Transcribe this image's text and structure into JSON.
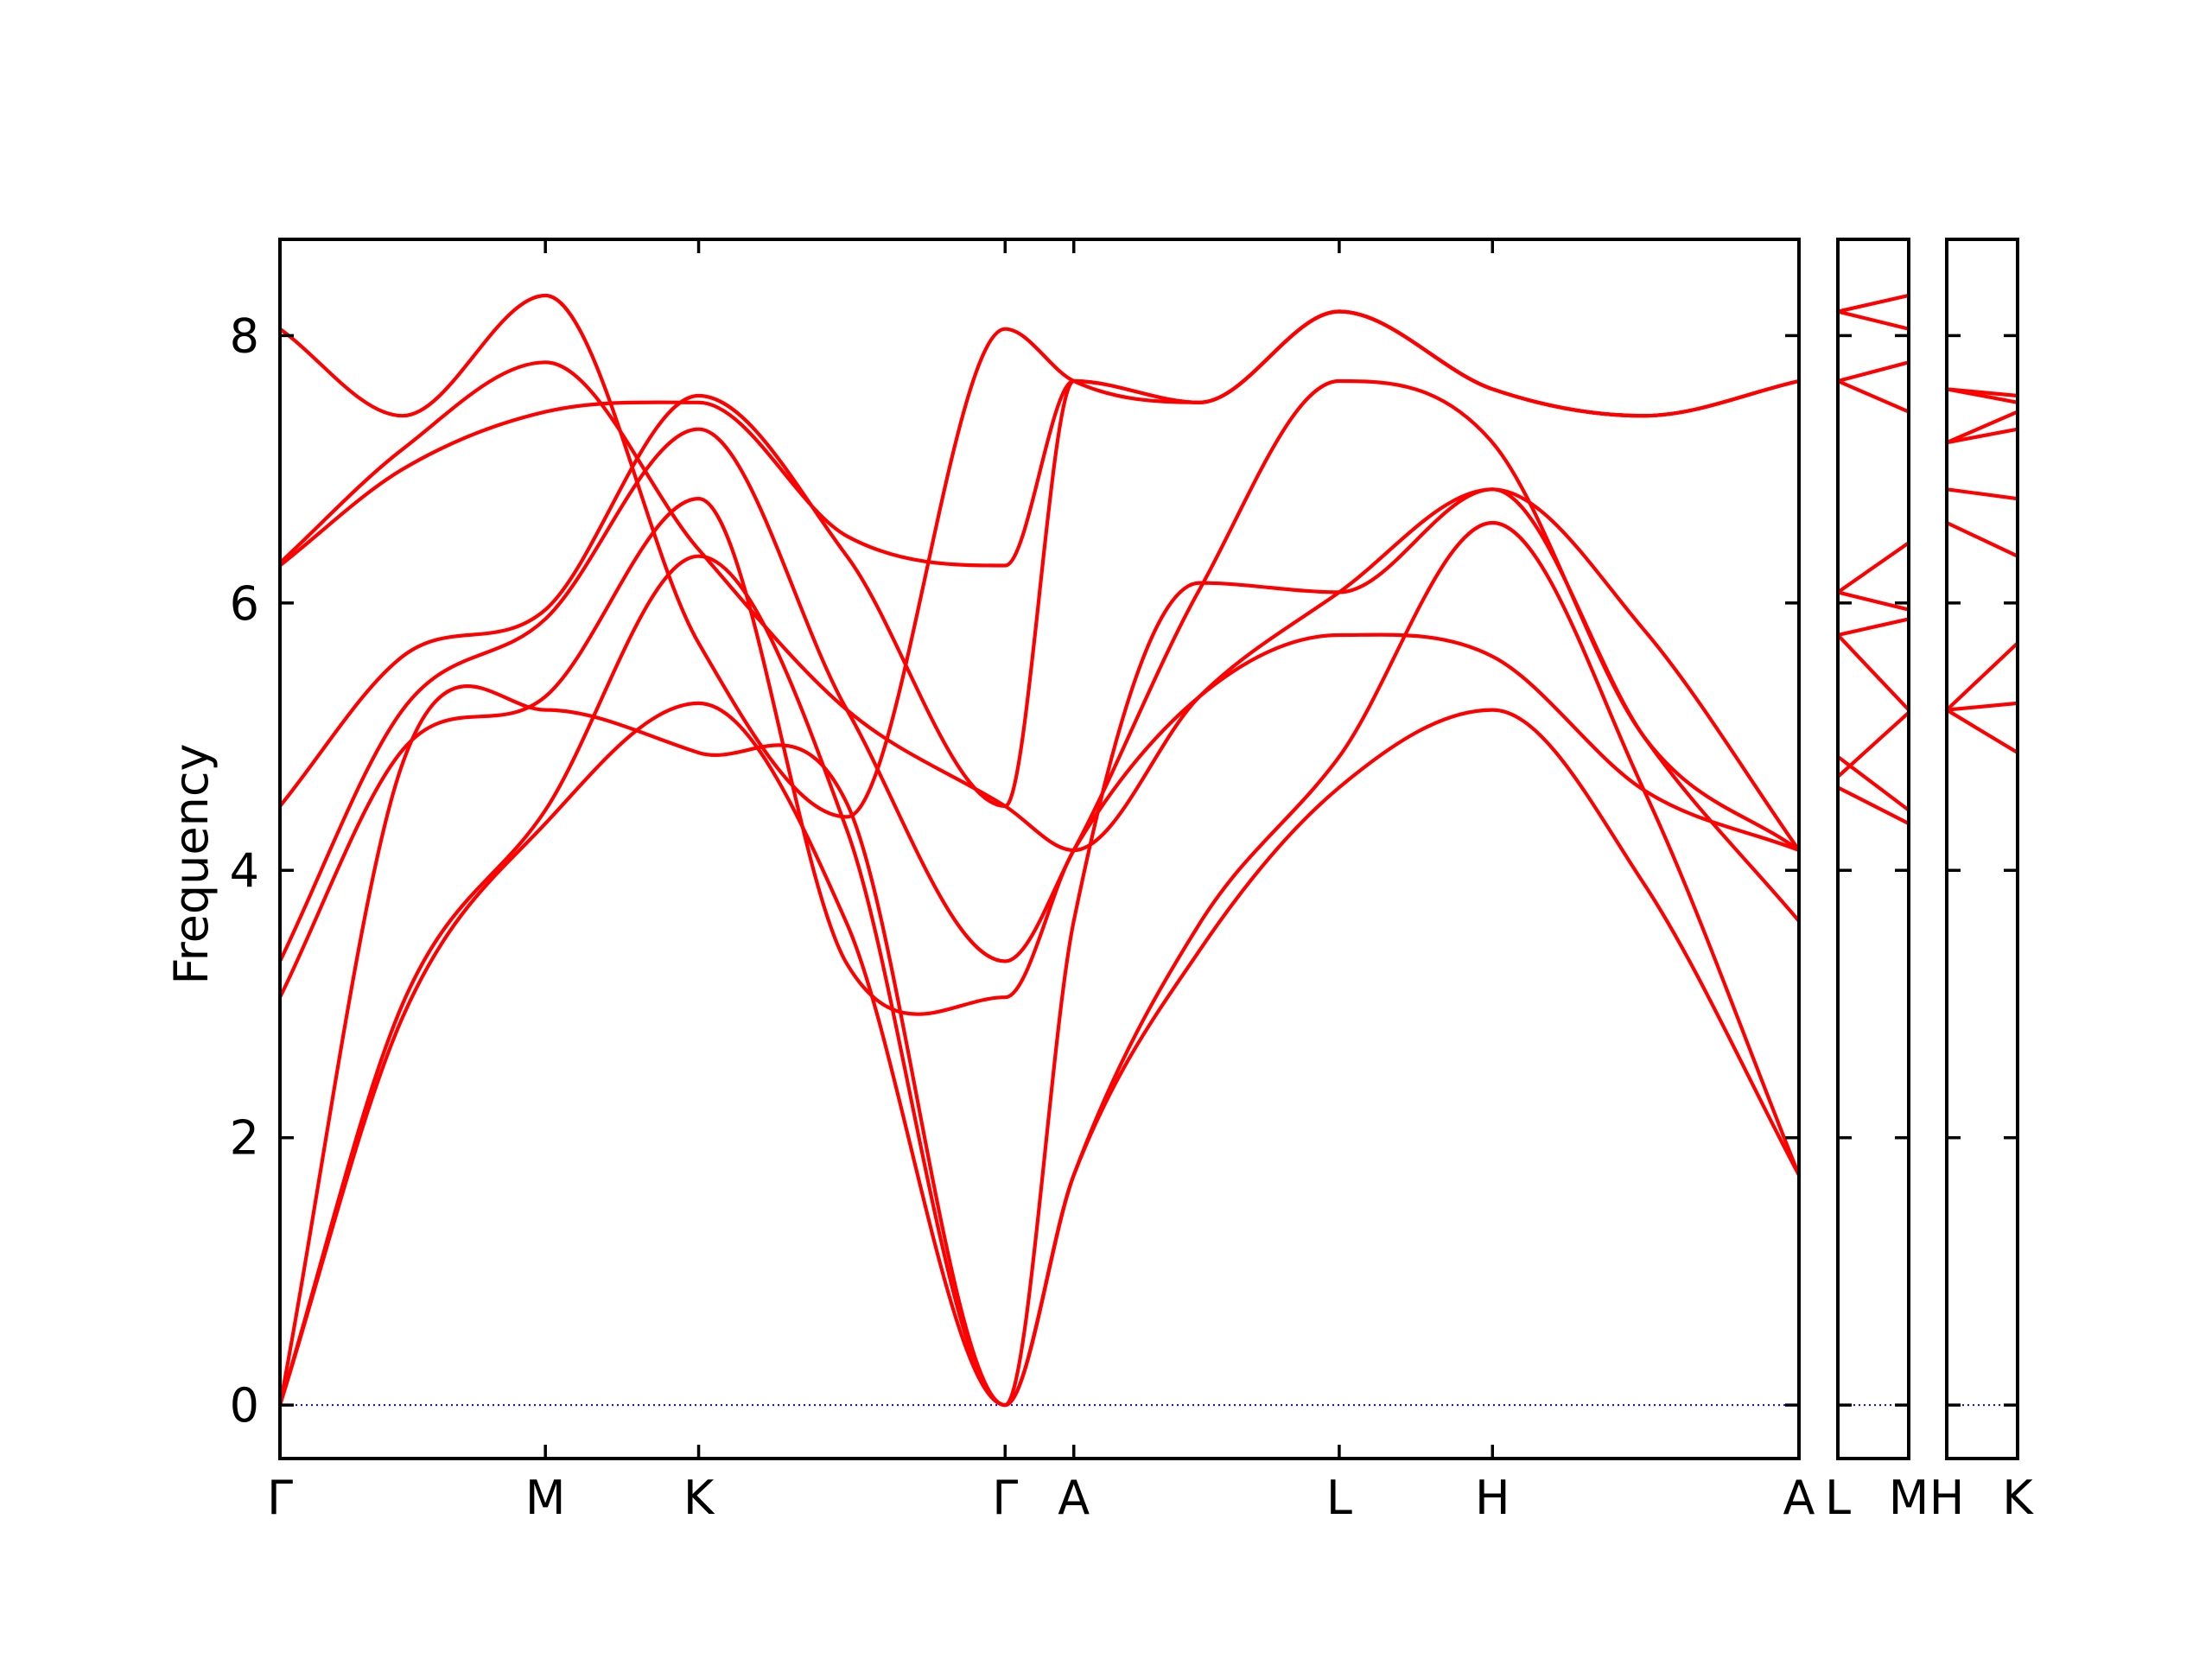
{
  "chart_data": {
    "type": "line",
    "ylabel": "Frequency",
    "ylim": [
      -0.4,
      8.72
    ],
    "yticks": [
      0,
      2,
      4,
      6,
      8
    ],
    "colors": {
      "bands": "#ff0000",
      "zero_line": "#0000ff",
      "axes": "#000000"
    },
    "grid": false,
    "legend": "none",
    "panels": [
      {
        "labels": [
          "Γ",
          "M",
          "K",
          "Γ",
          "A",
          "L",
          "H",
          "A"
        ],
        "x": [
          0,
          1.732,
          2.732,
          4.732,
          5.18,
          6.912,
          7.912,
          9.912
        ],
        "series": [
          {
            "x": [
              0,
              0.8,
              1.732,
              2.732,
              3.7,
              4.732,
              5.18,
              6.0,
              6.912,
              7.912,
              8.9,
              9.912
            ],
            "values": [
              0,
              2.9,
              4.35,
              5.25,
              3.6,
              0,
              1.72,
              3.4,
              4.62,
              5.2,
              3.9,
              1.72
            ]
          },
          {
            "x": [
              0,
              0.8,
              1.732,
              2.732,
              3.7,
              4.732,
              5.18,
              6.0,
              6.912,
              7.912,
              8.9,
              9.912
            ],
            "values": [
              0,
              3.0,
              4.45,
              6.35,
              4.3,
              0,
              1.72,
              3.6,
              4.85,
              6.6,
              4.6,
              1.72
            ]
          },
          {
            "x": [
              0,
              0.8,
              1.732,
              2.732,
              3.7,
              4.732,
              5.18,
              6.0,
              6.912,
              7.912,
              8.9,
              9.912
            ],
            "values": [
              0,
              4.8,
              5.2,
              4.88,
              4.5,
              0,
              3.62,
              6.15,
              6.08,
              6.85,
              5.0,
              3.62
            ]
          },
          {
            "x": [
              0,
              0.8,
              1.732,
              2.732,
              3.7,
              4.732,
              5.18,
              6.0,
              6.912,
              7.912,
              8.9,
              9.912
            ],
            "values": [
              3.05,
              4.9,
              5.3,
              6.78,
              3.3,
              3.05,
              4.15,
              5.3,
              5.76,
              5.6,
              4.6,
              4.15
            ]
          },
          {
            "x": [
              0,
              0.8,
              1.732,
              2.732,
              3.7,
              4.732,
              5.18,
              6.0,
              6.912,
              7.912,
              8.9,
              9.912
            ],
            "values": [
              3.32,
              5.2,
              5.88,
              7.3,
              5.2,
              3.32,
              4.15,
              6.1,
              7.66,
              7.2,
              5.0,
              4.15
            ]
          },
          {
            "x": [
              0,
              0.8,
              1.732,
              2.732,
              3.7,
              4.732,
              5.18,
              6.0,
              6.912,
              7.912,
              8.9,
              9.912
            ],
            "values": [
              4.48,
              5.6,
              5.95,
              7.55,
              6.35,
              4.48,
              7.66,
              7.5,
              8.18,
              7.6,
              7.4,
              7.66
            ]
          },
          {
            "x": [
              0,
              0.8,
              1.732,
              2.732,
              3.7,
              4.732,
              5.18,
              6.0,
              6.912,
              7.912,
              8.9,
              9.912
            ],
            "values": [
              6.28,
              7.0,
              7.43,
              7.5,
              6.5,
              6.28,
              7.66,
              7.5,
              8.18,
              7.6,
              7.4,
              7.66
            ]
          },
          {
            "x": [
              0,
              0.8,
              1.732,
              2.732,
              3.7,
              4.732,
              5.18,
              6.0,
              6.912,
              7.912,
              8.9,
              9.912
            ],
            "values": [
              6.3,
              7.15,
              7.8,
              6.4,
              5.2,
              4.48,
              4.15,
              5.3,
              6.08,
              6.85,
              5.8,
              4.15
            ]
          },
          {
            "x": [
              0,
              0.8,
              1.732,
              2.732,
              3.7,
              4.732,
              5.18,
              6.0,
              6.912,
              7.912,
              8.9,
              9.912
            ],
            "values": [
              8.05,
              7.4,
              8.3,
              5.7,
              4.4,
              8.05,
              7.66,
              7.5,
              8.18,
              7.6,
              7.4,
              7.66
            ]
          }
        ]
      },
      {
        "labels": [
          "L",
          "M"
        ],
        "x": [
          0,
          1
        ],
        "series": [
          {
            "x": [
              0,
              1
            ],
            "values": [
              4.62,
              4.35
            ]
          },
          {
            "x": [
              0,
              1
            ],
            "values": [
              4.85,
              4.45
            ]
          },
          {
            "x": [
              0,
              1
            ],
            "values": [
              4.7,
              5.18
            ]
          },
          {
            "x": [
              0,
              1
            ],
            "values": [
              5.76,
              5.2
            ]
          },
          {
            "x": [
              0,
              1
            ],
            "values": [
              5.76,
              5.88
            ]
          },
          {
            "x": [
              0,
              1
            ],
            "values": [
              6.08,
              5.95
            ]
          },
          {
            "x": [
              0,
              1
            ],
            "values": [
              6.08,
              6.45
            ]
          },
          {
            "x": [
              0,
              1
            ],
            "values": [
              7.66,
              7.43
            ]
          },
          {
            "x": [
              0,
              1
            ],
            "values": [
              7.66,
              7.8
            ]
          },
          {
            "x": [
              0,
              1
            ],
            "values": [
              8.18,
              8.05
            ]
          },
          {
            "x": [
              0,
              1
            ],
            "values": [
              8.18,
              8.3
            ]
          }
        ]
      },
      {
        "labels": [
          "H",
          "K"
        ],
        "x": [
          0,
          1
        ],
        "series": [
          {
            "x": [
              0,
              1
            ],
            "values": [
              5.2,
              4.88
            ]
          },
          {
            "x": [
              0,
              1
            ],
            "values": [
              5.2,
              5.25
            ]
          },
          {
            "x": [
              0,
              1
            ],
            "values": [
              5.2,
              5.7
            ]
          },
          {
            "x": [
              0,
              1
            ],
            "values": [
              6.6,
              6.35
            ]
          },
          {
            "x": [
              0,
              1
            ],
            "values": [
              6.85,
              6.78
            ]
          },
          {
            "x": [
              0,
              1
            ],
            "values": [
              7.2,
              7.3
            ]
          },
          {
            "x": [
              0,
              1
            ],
            "values": [
              7.2,
              7.43
            ]
          },
          {
            "x": [
              0,
              1
            ],
            "values": [
              7.6,
              7.5
            ]
          },
          {
            "x": [
              0,
              1
            ],
            "values": [
              7.6,
              7.55
            ]
          }
        ]
      }
    ]
  }
}
